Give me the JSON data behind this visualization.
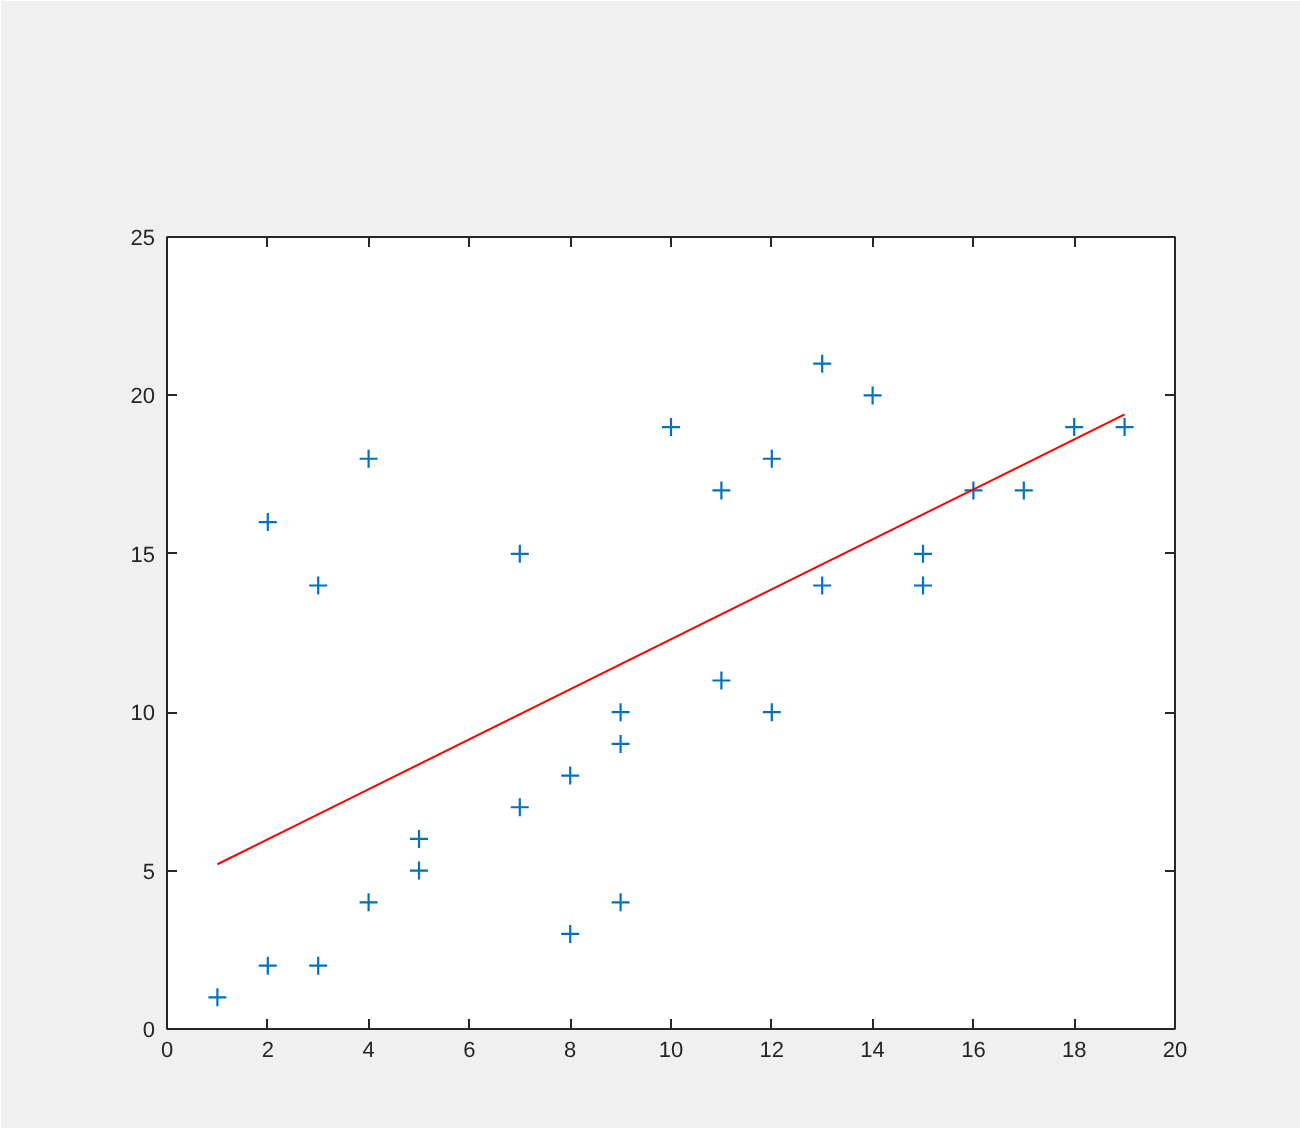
{
  "chart_data": {
    "type": "scatter",
    "x": [
      1,
      2,
      2,
      3,
      3,
      4,
      4,
      5,
      5,
      7,
      7,
      8,
      8,
      9,
      9,
      9,
      10,
      11,
      11,
      12,
      12,
      13,
      13,
      14,
      15,
      15,
      16,
      17,
      18,
      19
    ],
    "series": [
      {
        "color": "#0072bd",
        "marker": "cross",
        "values": [
          1,
          2,
          16,
          2,
          14,
          4,
          18,
          5,
          6,
          7,
          15,
          3,
          8,
          4,
          9,
          10,
          19,
          11,
          17,
          10,
          18,
          14,
          21,
          20,
          14,
          15,
          17,
          17,
          19,
          19
        ]
      },
      {
        "type": "line",
        "color": "#ff0000",
        "x": [
          1,
          19
        ],
        "values": [
          5.2,
          19.4
        ]
      }
    ],
    "xlim": [
      0,
      20
    ],
    "ylim": [
      0,
      25
    ],
    "xticks": [
      0,
      2,
      4,
      6,
      8,
      10,
      12,
      14,
      16,
      18,
      20
    ],
    "yticks": [
      0,
      5,
      10,
      15,
      20,
      25
    ],
    "grid": false
  }
}
